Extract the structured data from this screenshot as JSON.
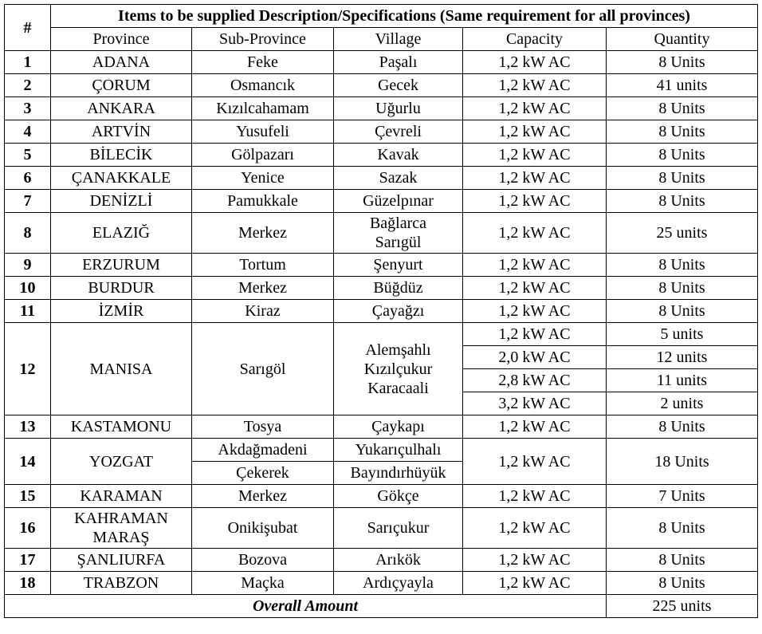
{
  "table": {
    "header": {
      "number": "#",
      "title": "Items to be supplied Description/Specifications (Same requirement for all provinces)"
    },
    "columns": [
      "Province",
      "Sub-Province",
      "Village",
      "Capacity",
      "Quantity"
    ],
    "rows": [
      {
        "number": 1,
        "province": "ADANA",
        "sub_provinces": [
          "Feke"
        ],
        "villages": [
          "Paşalı"
        ],
        "capacities": [
          "1,2 kW AC"
        ],
        "quantities": [
          "8 Units"
        ]
      },
      {
        "number": 2,
        "province": "ÇORUM",
        "sub_provinces": [
          "Osmancık"
        ],
        "villages": [
          "Gecek"
        ],
        "capacities": [
          "1,2 kW AC"
        ],
        "quantities": [
          "41 units"
        ]
      },
      {
        "number": 3,
        "province": "ANKARA",
        "sub_provinces": [
          "Kızılcahamam"
        ],
        "villages": [
          "Uğurlu"
        ],
        "capacities": [
          "1,2 kW AC"
        ],
        "quantities": [
          "8 Units"
        ]
      },
      {
        "number": 4,
        "province": "ARTVİN",
        "sub_provinces": [
          "Yusufeli"
        ],
        "villages": [
          "Çevreli"
        ],
        "capacities": [
          "1,2 kW AC"
        ],
        "quantities": [
          "8 Units"
        ]
      },
      {
        "number": 5,
        "province": "BİLECİK",
        "sub_provinces": [
          "Gölpazarı"
        ],
        "villages": [
          "Kavak"
        ],
        "capacities": [
          "1,2 kW AC"
        ],
        "quantities": [
          "8 Units"
        ]
      },
      {
        "number": 6,
        "province": "ÇANAKKALE",
        "sub_provinces": [
          "Yenice"
        ],
        "villages": [
          "Sazak"
        ],
        "capacities": [
          "1,2 kW AC"
        ],
        "quantities": [
          "8 Units"
        ]
      },
      {
        "number": 7,
        "province": "DENİZLİ",
        "sub_provinces": [
          "Pamukkale"
        ],
        "villages": [
          "Güzelpınar"
        ],
        "capacities": [
          "1,2 kW AC"
        ],
        "quantities": [
          "8 Units"
        ]
      },
      {
        "number": 8,
        "province": "ELAZIĞ",
        "sub_provinces": [
          "Merkez"
        ],
        "villages": [
          "Bağlarca\nSarıgül"
        ],
        "capacities": [
          "1,2 kW AC"
        ],
        "quantities": [
          "25 units"
        ]
      },
      {
        "number": 9,
        "province": "ERZURUM",
        "sub_provinces": [
          "Tortum"
        ],
        "villages": [
          "Şenyurt"
        ],
        "capacities": [
          "1,2 kW AC"
        ],
        "quantities": [
          "8 Units"
        ]
      },
      {
        "number": 10,
        "province": "BURDUR",
        "sub_provinces": [
          "Merkez"
        ],
        "villages": [
          "Büğdüz"
        ],
        "capacities": [
          "1,2 kW AC"
        ],
        "quantities": [
          "8 Units"
        ]
      },
      {
        "number": 11,
        "province": "İZMİR",
        "sub_provinces": [
          "Kiraz"
        ],
        "villages": [
          "Çayağzı"
        ],
        "capacities": [
          "1,2 kW AC"
        ],
        "quantities": [
          "8 Units"
        ]
      },
      {
        "number": 12,
        "province": "MANISA",
        "sub_provinces": [
          "Sarıgöl"
        ],
        "villages": [
          "Alemşahlı\nKızılçukur\nKaracaali"
        ],
        "capacities": [
          "1,2 kW AC",
          "2,0 kW AC",
          "2,8 kW AC",
          "3,2 kW AC"
        ],
        "quantities": [
          "5 units",
          "12 units",
          "11 units",
          "2 units"
        ]
      },
      {
        "number": 13,
        "province": "KASTAMONU",
        "sub_provinces": [
          "Tosya"
        ],
        "villages": [
          "Çaykapı"
        ],
        "capacities": [
          "1,2 kW AC"
        ],
        "quantities": [
          "8 Units"
        ]
      },
      {
        "number": 14,
        "province": "YOZGAT",
        "sub_provinces": [
          "Akdağmadeni",
          "Çekerek"
        ],
        "villages": [
          "Yukarıçulhalı",
          "Bayındırhüyük"
        ],
        "capacities": [
          "1,2 kW AC"
        ],
        "quantities": [
          "18 Units"
        ]
      },
      {
        "number": 15,
        "province": "KARAMAN",
        "sub_provinces": [
          "Merkez"
        ],
        "villages": [
          "Gökçe"
        ],
        "capacities": [
          "1,2 kW AC"
        ],
        "quantities": [
          "7 Units"
        ]
      },
      {
        "number": 16,
        "province": "KAHRAMAN\nMARAŞ",
        "sub_provinces": [
          "Onikişubat"
        ],
        "villages": [
          "Sarıçukur"
        ],
        "capacities": [
          "1,2 kW AC"
        ],
        "quantities": [
          "8 Units"
        ]
      },
      {
        "number": 17,
        "province": "ŞANLIURFA",
        "sub_provinces": [
          "Bozova"
        ],
        "villages": [
          "Arıkök"
        ],
        "capacities": [
          "1,2 kW AC"
        ],
        "quantities": [
          "8 Units"
        ]
      },
      {
        "number": 18,
        "province": "TRABZON",
        "sub_provinces": [
          "Maçka"
        ],
        "villages": [
          "Ardıçyayla"
        ],
        "capacities": [
          "1,2 kW AC"
        ],
        "quantities": [
          "8 Units"
        ]
      }
    ],
    "footer": {
      "label": "Overall Amount",
      "total": "225 units"
    }
  }
}
